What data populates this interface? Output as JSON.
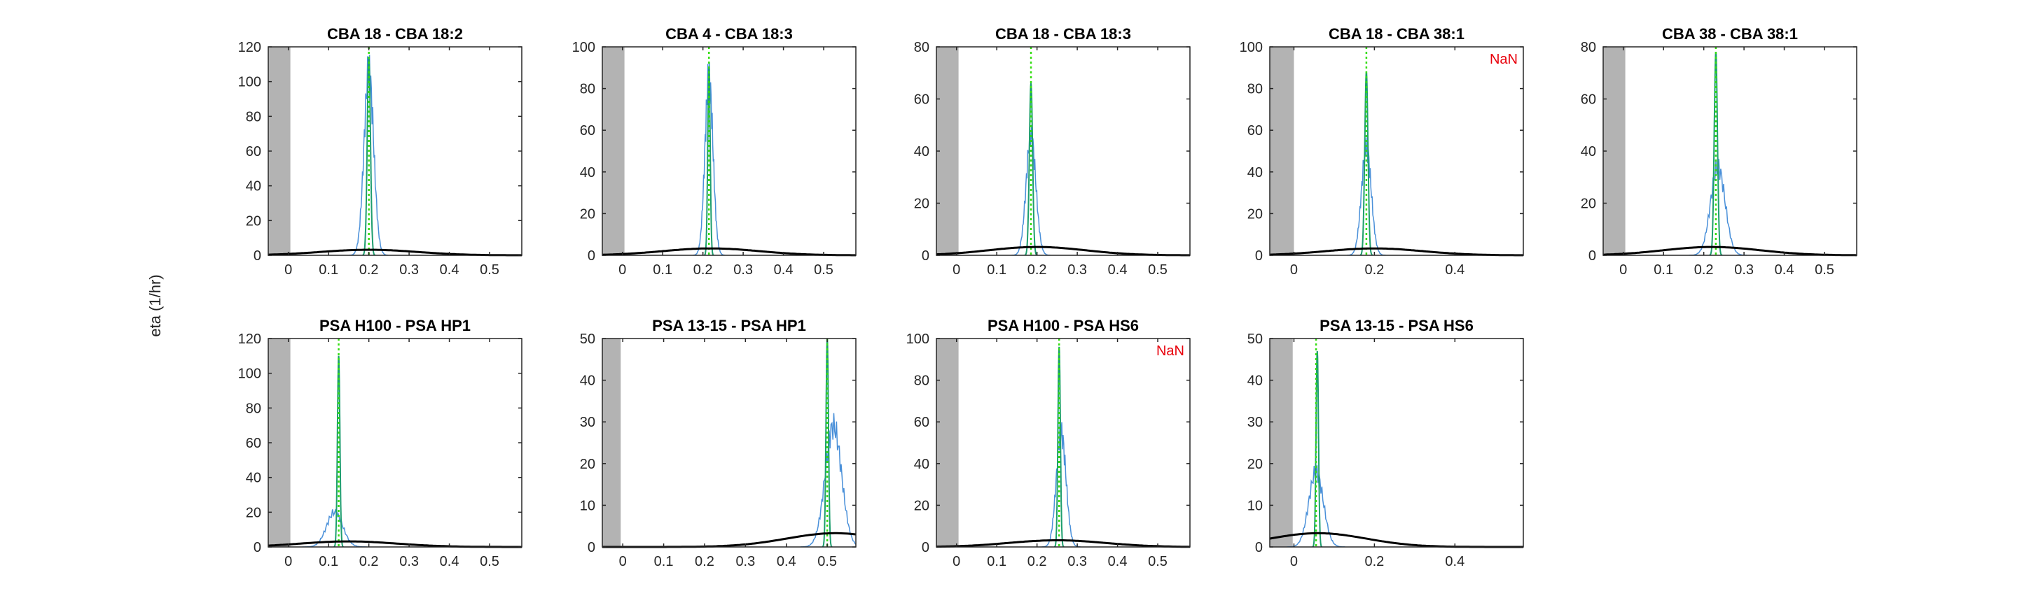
{
  "figure": {
    "ylabel": "eta (1/hr)",
    "colors": {
      "shade": "#b3b3b3",
      "prior": "#000000",
      "histogram": "#4a90d9",
      "posterior": "#1e9e6e",
      "vline": "#33dd11",
      "nan": "#e8000b",
      "axes": "#262626"
    }
  },
  "chart_data": [
    {
      "type": "line",
      "title": "CBA 18 - CBA 18:2",
      "annotation": "",
      "xlim": [
        -0.05,
        0.58
      ],
      "ylim": [
        0,
        120
      ],
      "xticks": [
        0,
        0.1,
        0.2,
        0.3,
        0.4,
        0.5
      ],
      "xtick_labels": [
        "0",
        "0.1",
        "0.2",
        "0.3",
        "0.4",
        "0.5"
      ],
      "yticks": [
        0,
        20,
        40,
        60,
        80,
        100,
        120
      ],
      "shaded_xrange": [
        -0.05,
        0.005
      ],
      "vline_x": 0.2,
      "prior": {
        "mu": 0.2,
        "sigma": 0.12,
        "peak": 3.2
      },
      "histogram": {
        "mu": 0.2,
        "sigma": 0.012,
        "peak": 106
      },
      "posterior": {
        "mu": 0.2,
        "sigma": 0.004,
        "peak": 114
      }
    },
    {
      "type": "line",
      "title": "CBA 4 - CBA 18:3",
      "annotation": "",
      "xlim": [
        -0.05,
        0.58
      ],
      "ylim": [
        0,
        100
      ],
      "xticks": [
        0,
        0.1,
        0.2,
        0.3,
        0.4,
        0.5
      ],
      "xtick_labels": [
        "0",
        "0.1",
        "0.2",
        "0.3",
        "0.4",
        "0.5"
      ],
      "yticks": [
        0,
        20,
        40,
        60,
        80,
        100
      ],
      "shaded_xrange": [
        -0.05,
        0.005
      ],
      "vline_x": 0.215,
      "prior": {
        "mu": 0.22,
        "sigma": 0.12,
        "peak": 3.3
      },
      "histogram": {
        "mu": 0.215,
        "sigma": 0.01,
        "peak": 85
      },
      "posterior": {
        "mu": 0.215,
        "sigma": 0.003,
        "peak": 90
      }
    },
    {
      "type": "line",
      "title": "CBA 18 - CBA 18:3",
      "annotation": "",
      "xlim": [
        -0.05,
        0.58
      ],
      "ylim": [
        0,
        80
      ],
      "xticks": [
        0,
        0.1,
        0.2,
        0.3,
        0.4,
        0.5
      ],
      "xtick_labels": [
        "0",
        "0.1",
        "0.2",
        "0.3",
        "0.4",
        "0.5"
      ],
      "yticks": [
        0,
        20,
        40,
        60,
        80
      ],
      "shaded_xrange": [
        -0.05,
        0.005
      ],
      "vline_x": 0.185,
      "prior": {
        "mu": 0.2,
        "sigma": 0.12,
        "peak": 3.2
      },
      "histogram": {
        "mu": 0.185,
        "sigma": 0.012,
        "peak": 46
      },
      "posterior": {
        "mu": 0.185,
        "sigma": 0.004,
        "peak": 66
      }
    },
    {
      "type": "line",
      "title": "CBA 18 - CBA 38:1",
      "annotation": "NaN",
      "xlim": [
        -0.06,
        0.57
      ],
      "ylim": [
        0,
        100
      ],
      "xticks": [
        0,
        0.2,
        0.4
      ],
      "xtick_labels": [
        "0",
        "0.2",
        "0.4"
      ],
      "yticks": [
        0,
        20,
        40,
        60,
        80,
        100
      ],
      "shaded_xrange": [
        -0.06,
        0.0
      ],
      "vline_x": 0.18,
      "prior": {
        "mu": 0.2,
        "sigma": 0.12,
        "peak": 3.3
      },
      "histogram": {
        "mu": 0.18,
        "sigma": 0.012,
        "peak": 52
      },
      "posterior": {
        "mu": 0.18,
        "sigma": 0.004,
        "peak": 88
      }
    },
    {
      "type": "line",
      "title": "CBA 38 - CBA 38:1",
      "annotation": "",
      "xlim": [
        -0.05,
        0.58
      ],
      "ylim": [
        0,
        80
      ],
      "xticks": [
        0,
        0.1,
        0.2,
        0.3,
        0.4,
        0.5
      ],
      "xtick_labels": [
        "0",
        "0.1",
        "0.2",
        "0.3",
        "0.4",
        "0.5"
      ],
      "yticks": [
        0,
        20,
        40,
        60,
        80
      ],
      "shaded_xrange": [
        -0.05,
        0.005
      ],
      "vline_x": 0.23,
      "prior": {
        "mu": 0.22,
        "sigma": 0.12,
        "peak": 3.2
      },
      "histogram": {
        "mu": 0.235,
        "sigma": 0.018,
        "peak": 34
      },
      "posterior": {
        "mu": 0.23,
        "sigma": 0.004,
        "peak": 78
      }
    },
    {
      "type": "line",
      "title": "PSA H100 - PSA HP1",
      "annotation": "",
      "xlim": [
        -0.05,
        0.58
      ],
      "ylim": [
        0,
        120
      ],
      "xticks": [
        0,
        0.1,
        0.2,
        0.3,
        0.4,
        0.5
      ],
      "xtick_labels": [
        "0",
        "0.1",
        "0.2",
        "0.3",
        "0.4",
        "0.5"
      ],
      "yticks": [
        0,
        20,
        40,
        60,
        80,
        100,
        120
      ],
      "shaded_xrange": [
        -0.05,
        0.005
      ],
      "vline_x": 0.125,
      "prior": {
        "mu": 0.15,
        "sigma": 0.12,
        "peak": 3.2
      },
      "histogram": {
        "mu": 0.115,
        "sigma": 0.02,
        "peak": 20
      },
      "posterior": {
        "mu": 0.125,
        "sigma": 0.003,
        "peak": 110
      }
    },
    {
      "type": "line",
      "title": "PSA 13-15 - PSA HP1",
      "annotation": "",
      "xlim": [
        -0.05,
        0.57
      ],
      "ylim": [
        0,
        50
      ],
      "xticks": [
        0,
        0.1,
        0.2,
        0.3,
        0.4,
        0.5
      ],
      "xtick_labels": [
        "0",
        "0.1",
        "0.2",
        "0.3",
        "0.4",
        "0.5"
      ],
      "yticks": [
        0,
        10,
        20,
        30,
        40,
        50
      ],
      "shaded_xrange": [
        -0.05,
        -0.005
      ],
      "vline_x": 0.5,
      "prior": {
        "mu": 0.52,
        "sigma": 0.12,
        "peak": 3.3
      },
      "histogram": {
        "mu": 0.515,
        "sigma": 0.02,
        "peak": 29
      },
      "posterior": {
        "mu": 0.5,
        "sigma": 0.003,
        "peak": 50
      }
    },
    {
      "type": "line",
      "title": "PSA H100 - PSA HS6",
      "annotation": "NaN",
      "xlim": [
        -0.05,
        0.58
      ],
      "ylim": [
        0,
        100
      ],
      "xticks": [
        0,
        0.1,
        0.2,
        0.3,
        0.4,
        0.5
      ],
      "xtick_labels": [
        "0",
        "0.1",
        "0.2",
        "0.3",
        "0.4",
        "0.5"
      ],
      "yticks": [
        0,
        20,
        40,
        60,
        80,
        100
      ],
      "shaded_xrange": [
        -0.05,
        0.005
      ],
      "vline_x": 0.255,
      "prior": {
        "mu": 0.25,
        "sigma": 0.12,
        "peak": 3.2
      },
      "histogram": {
        "mu": 0.26,
        "sigma": 0.012,
        "peak": 55
      },
      "posterior": {
        "mu": 0.255,
        "sigma": 0.003,
        "peak": 96
      }
    },
    {
      "type": "line",
      "title": "PSA 13-15 - PSA HS6",
      "annotation": "",
      "xlim": [
        -0.06,
        0.57
      ],
      "ylim": [
        0,
        50
      ],
      "xticks": [
        0,
        0.2,
        0.4
      ],
      "xtick_labels": [
        "0",
        "0.2",
        "0.4"
      ],
      "yticks": [
        0,
        10,
        20,
        30,
        40,
        50
      ],
      "shaded_xrange": [
        -0.06,
        -0.003
      ],
      "vline_x": 0.055,
      "prior": {
        "mu": 0.06,
        "sigma": 0.12,
        "peak": 3.3
      },
      "histogram": {
        "mu": 0.055,
        "sigma": 0.018,
        "peak": 18
      },
      "posterior": {
        "mu": 0.058,
        "sigma": 0.003,
        "peak": 47
      }
    }
  ]
}
